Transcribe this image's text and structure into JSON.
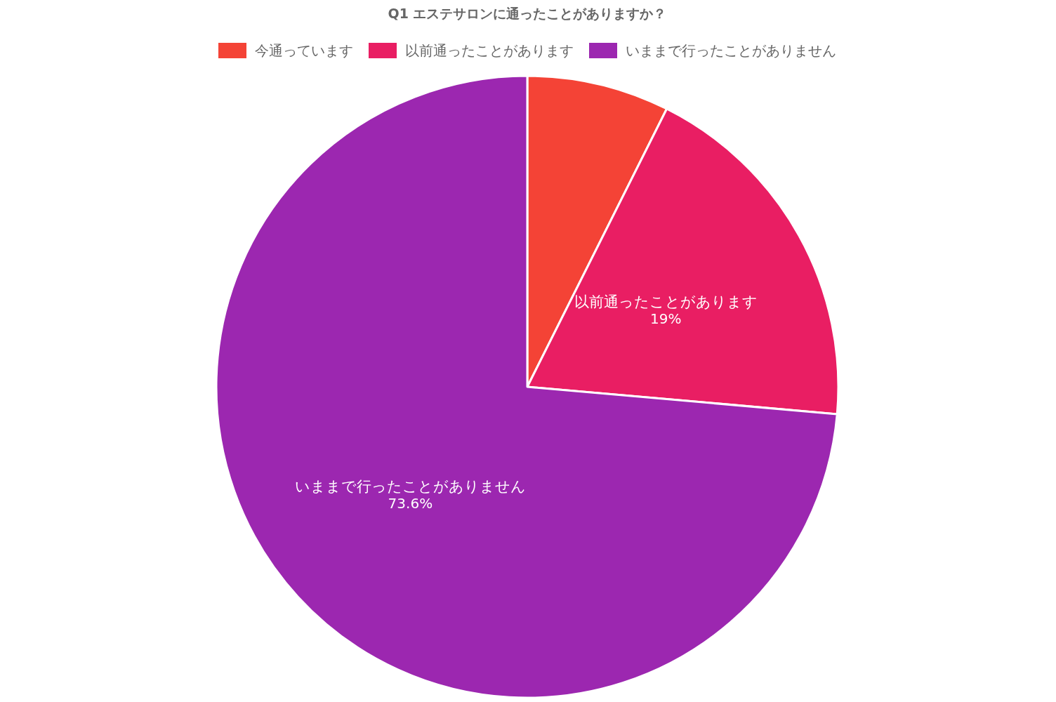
{
  "chart_data": {
    "type": "pie",
    "title": "Q1 エステサロンに通ったことがありますか？",
    "categories": [
      "今通っています",
      "以前通ったことがあります",
      "いままで行ったことがありません"
    ],
    "values": [
      7.4,
      19,
      73.6
    ],
    "colors": [
      "#f44336",
      "#e91e63",
      "#9c27b0"
    ],
    "value_labels": [
      null,
      "19%",
      "73.6%"
    ],
    "legend": "top"
  }
}
